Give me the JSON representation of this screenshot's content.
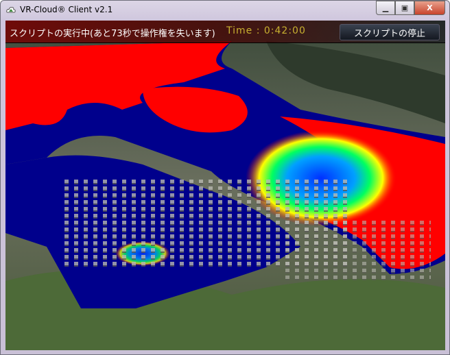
{
  "window": {
    "title": "VR-Cloud® Client v2.1",
    "minimize_icon": "minimize-icon",
    "maximize_icon": "maximize-icon",
    "close_icon": "close-icon",
    "close_label": "X"
  },
  "overlay": {
    "time_label": "Time : 0:42:00"
  },
  "banner": {
    "message": "スクリプトの実行中(あと73秒で操作権を失います)",
    "stop_button": "スクリプトの停止"
  },
  "colors": {
    "flood_high": "#ff0000",
    "flood_low": "#00008c",
    "accent_mid": "#00ff60",
    "accent_yellow": "#ffff00"
  }
}
